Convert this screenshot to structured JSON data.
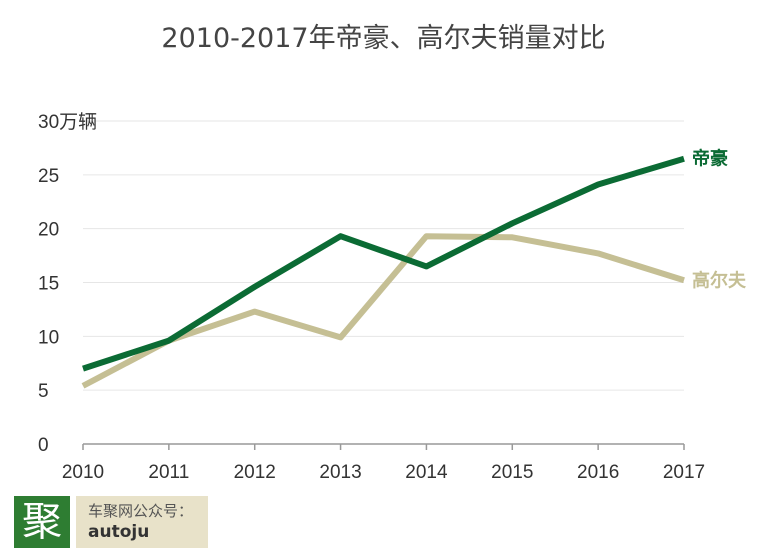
{
  "title": "2010-2017年帝豪、高尔夫销量对比",
  "chart_data": {
    "type": "line",
    "title": "2010-2017年帝豪、高尔夫销量对比",
    "ylabel": "万辆",
    "categories": [
      "2010",
      "2011",
      "2012",
      "2013",
      "2014",
      "2015",
      "2016",
      "2017"
    ],
    "ylim": [
      0,
      30
    ],
    "yticks": [
      0,
      5,
      10,
      15,
      20,
      25,
      30
    ],
    "ytick_labels": [
      "0",
      "5",
      "10",
      "15",
      "20",
      "25",
      "30万辆"
    ],
    "grid": true,
    "series": [
      {
        "name": "帝豪",
        "values": [
          7.0,
          9.6,
          14.6,
          19.3,
          16.5,
          20.5,
          24.1,
          26.5
        ],
        "color": "#0b6b34"
      },
      {
        "name": "高尔夫",
        "values": [
          5.4,
          9.6,
          12.3,
          9.9,
          19.3,
          19.2,
          17.7,
          15.2
        ],
        "color": "#c5bf94"
      }
    ]
  },
  "footer": {
    "logo_char": "聚",
    "wechat_label": "车聚网公众号：",
    "wechat_id": "autoju"
  }
}
